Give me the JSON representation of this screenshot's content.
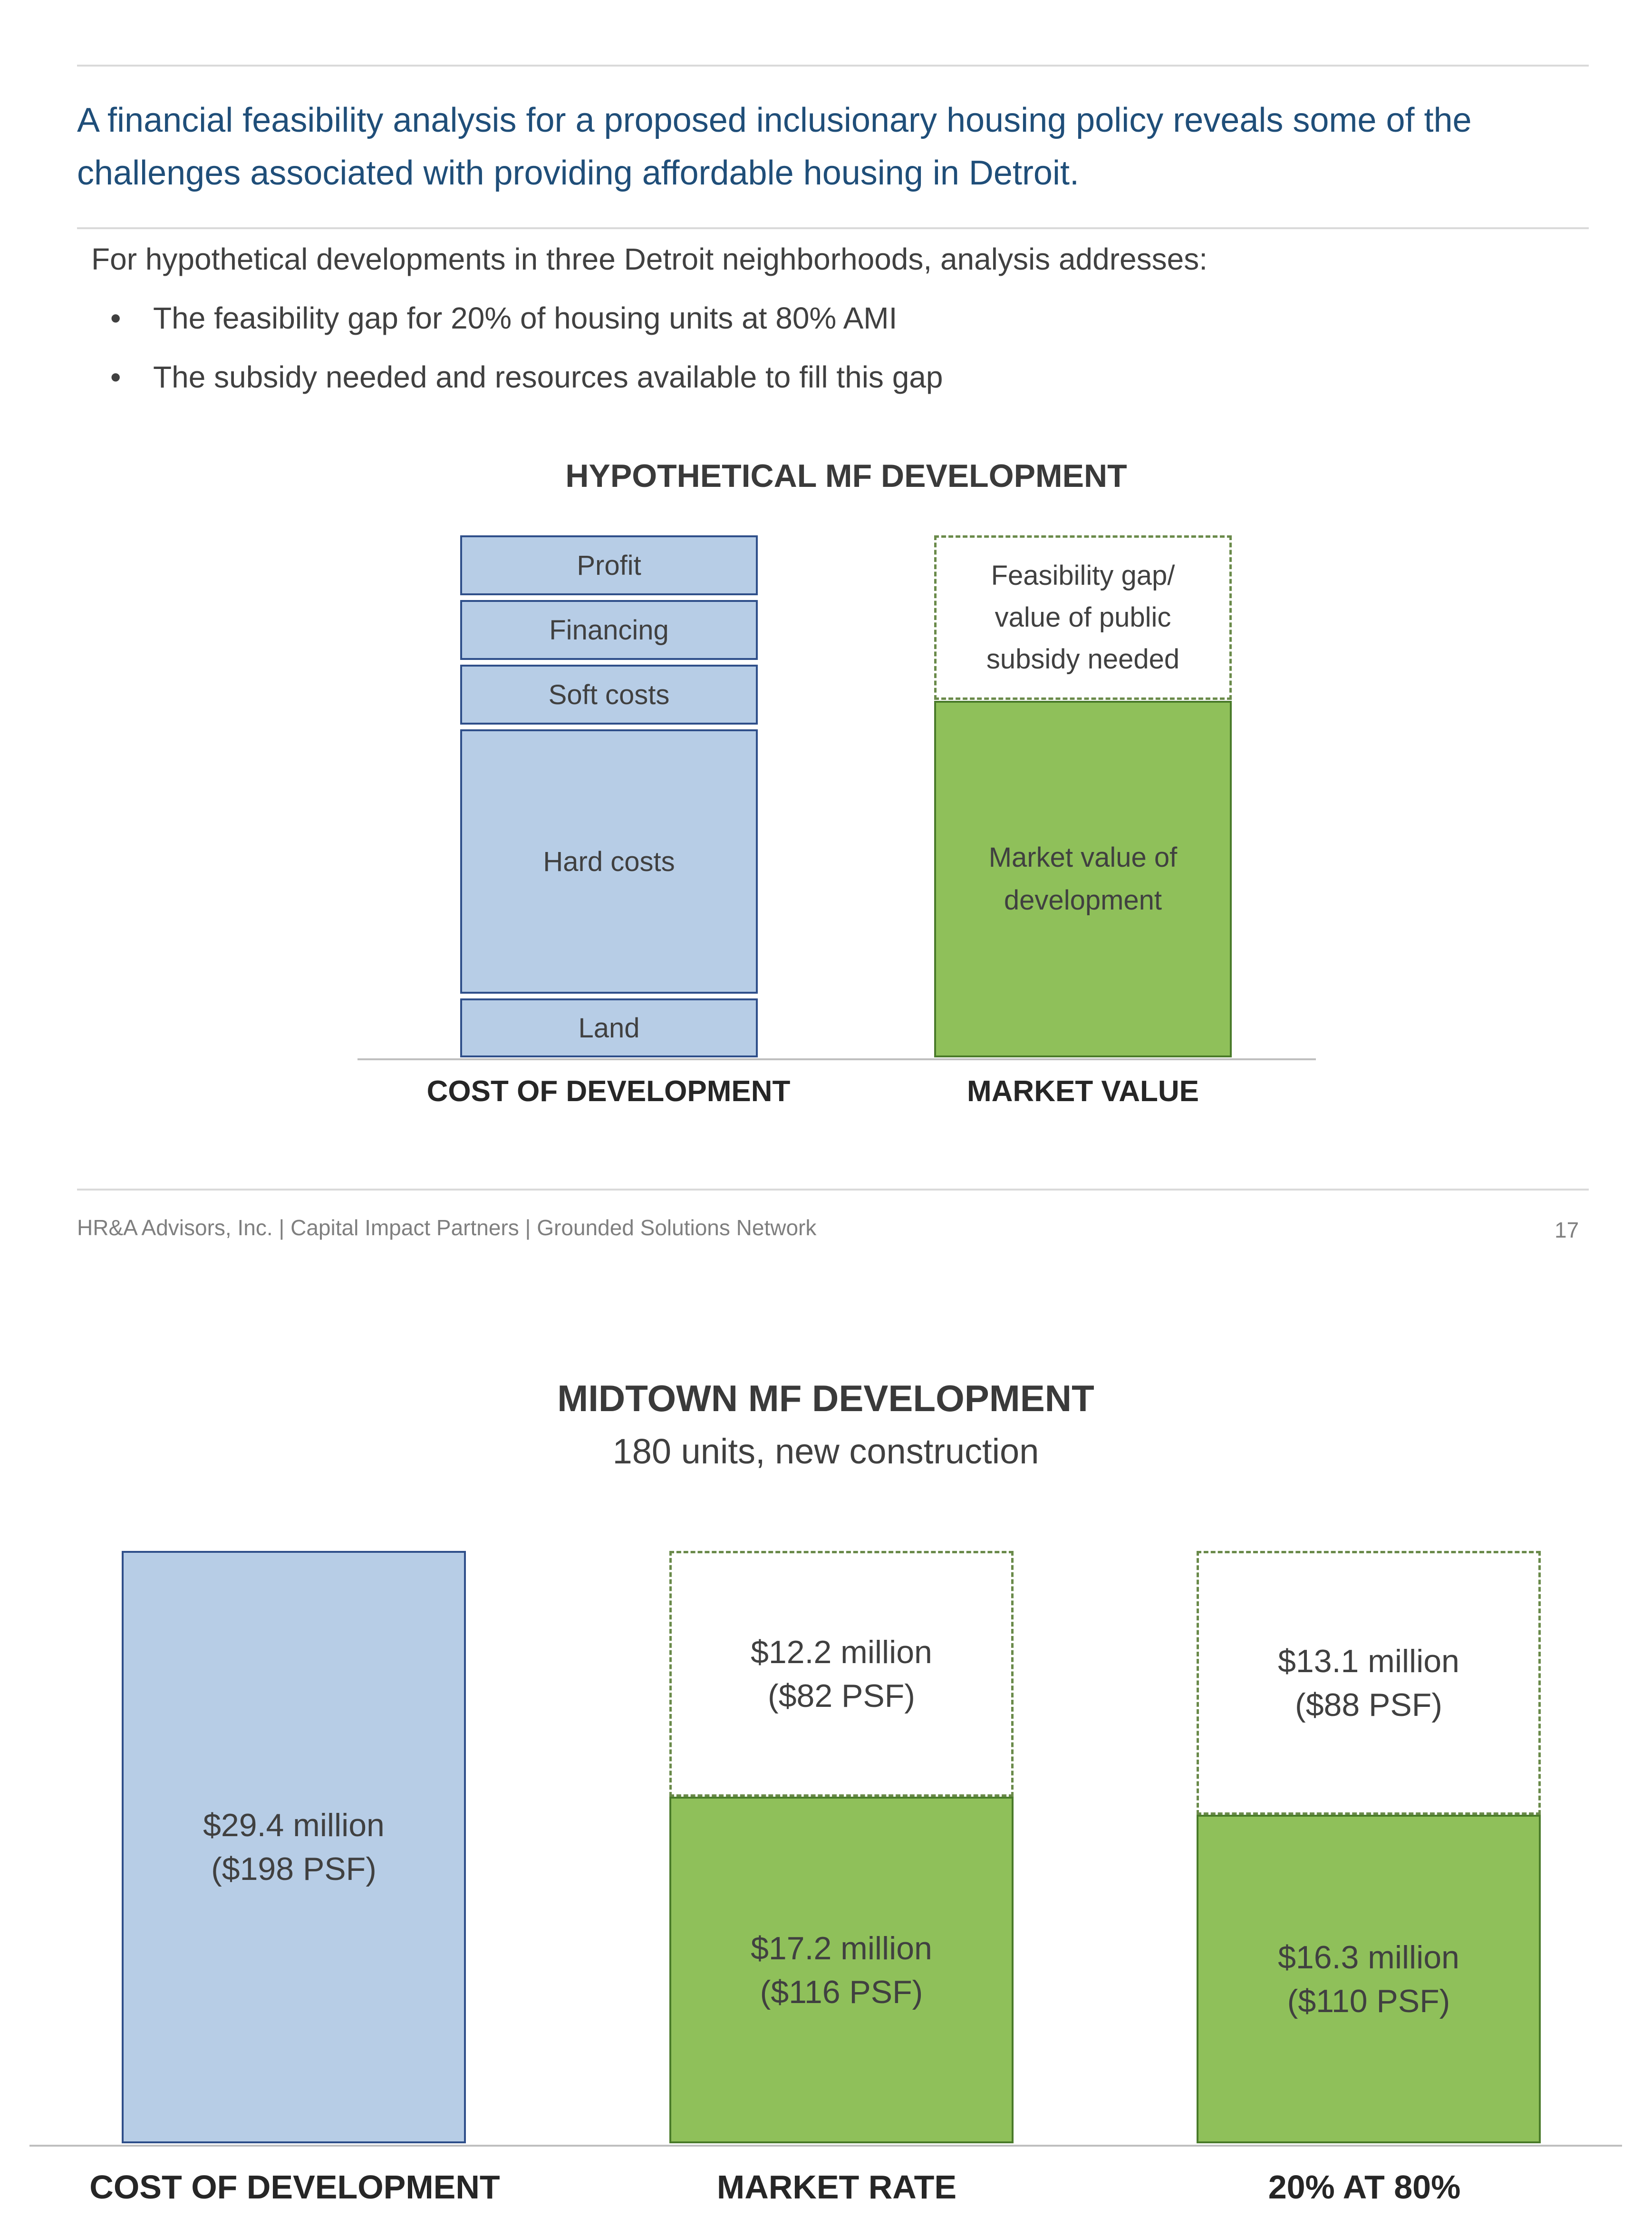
{
  "headline": "A financial feasibility analysis for a proposed inclusionary housing policy reveals some of the challenges associated with providing affordable housing in Detroit.",
  "intro": "For hypothetical developments in three Detroit neighborhoods, analysis addresses:",
  "bullets": [
    "The feasibility gap for 20% of housing units at 80% AMI",
    "The subsidy needed and resources available to fill this gap"
  ],
  "footer": "HR&A Advisors, Inc. | Capital Impact Partners | Grounded Solutions Network",
  "page_number": "17",
  "colors": {
    "cost": "#b7cde6",
    "market": "#8fc05a",
    "headline": "#1f4e79"
  },
  "chart_data": [
    {
      "type": "bar",
      "stacked": true,
      "title": "HYPOTHETICAL MF DEVELOPMENT",
      "categories": [
        "COST OF DEVELOPMENT",
        "MARKET VALUE"
      ],
      "cost_components": [
        "Land",
        "Hard costs",
        "Soft costs",
        "Financing",
        "Profit"
      ],
      "market_components": [
        "Market value of development",
        "Feasibility gap/ value of public subsidy needed"
      ],
      "labels": {
        "profit": "Profit",
        "financing": "Financing",
        "soft": "Soft costs",
        "hard": "Hard costs",
        "land": "Land",
        "gap": "Feasibility gap/\nvalue of public\nsubsidy needed",
        "market": "Market value of\ndevelopment"
      }
    },
    {
      "type": "bar",
      "stacked": true,
      "title": "MIDTOWN MF DEVELOPMENT",
      "subtitle": "180 units, new construction",
      "categories": [
        "COST OF DEVELOPMENT",
        "MARKET RATE",
        "20% AT 80%"
      ],
      "units": "$ million",
      "ylim": [
        0,
        29.4
      ],
      "series": [
        {
          "name": "cost",
          "values": [
            29.4,
            0,
            0
          ]
        },
        {
          "name": "market value",
          "values": [
            0,
            17.2,
            16.3
          ]
        },
        {
          "name": "feasibility gap",
          "values": [
            0,
            12.2,
            13.1
          ]
        }
      ],
      "bar_labels": {
        "cost": {
          "amount": "$29.4 million",
          "psf": "($198 PSF)"
        },
        "market_rate_value": {
          "amount": "$17.2 million",
          "psf": "($116 PSF)"
        },
        "market_rate_gap": {
          "amount": "$12.2 million",
          "psf": "($82 PSF)"
        },
        "aff_value": {
          "amount": "$16.3 million",
          "psf": "($110 PSF)"
        },
        "aff_gap": {
          "amount": "$13.1 million",
          "psf": "($88 PSF)"
        }
      }
    }
  ]
}
